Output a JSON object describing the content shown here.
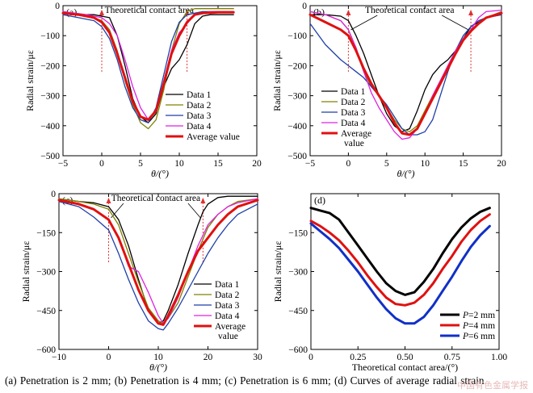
{
  "caption": "(a)  Penetration  is  2  mm;  (b)  Penetration  is  4  mm; (c) Penetration is 6 mm; (d) Curves of average radial strain",
  "watermark": "中国有色金属学报",
  "chart_data": [
    {
      "type": "line",
      "panel_label": "(a)",
      "xlabel": "θ/(°)",
      "ylabel": "Radial strain/με",
      "xlim": [
        -5,
        20
      ],
      "ylim": [
        -500,
        0
      ],
      "xticks": [
        -5,
        0,
        5,
        10,
        15,
        20
      ],
      "yticks": [
        0,
        -100,
        -200,
        -300,
        -400,
        -500
      ],
      "grid": false,
      "legend_position": "lower-right",
      "annotation": {
        "text": "Theoretical contact area",
        "arrows_at_x": [
          0,
          11
        ]
      },
      "series": [
        {
          "name": "Data 1",
          "color": "#000000",
          "width": 1.3,
          "x": [
            -5,
            -3,
            -1,
            1,
            2,
            3,
            4,
            5,
            6,
            7,
            8,
            9,
            10,
            11,
            12,
            13,
            14,
            15,
            17
          ],
          "y": [
            -20,
            -30,
            -30,
            -40,
            -100,
            -200,
            -310,
            -370,
            -390,
            -360,
            -270,
            -210,
            -180,
            -130,
            -60,
            -35,
            -30,
            -30,
            -30
          ]
        },
        {
          "name": "Data 2",
          "color": "#808000",
          "width": 1.3,
          "x": [
            -5,
            -2,
            0,
            1,
            2,
            3,
            4,
            5,
            6,
            7,
            8,
            9,
            10,
            11,
            12,
            13,
            15,
            17
          ],
          "y": [
            -20,
            -30,
            -50,
            -80,
            -150,
            -250,
            -330,
            -390,
            -410,
            -380,
            -280,
            -150,
            -60,
            -20,
            -10,
            -10,
            -10,
            -10
          ]
        },
        {
          "name": "Data 3",
          "color": "#1f3fa8",
          "width": 1.3,
          "x": [
            -5,
            -3,
            -1,
            0,
            1,
            2,
            3,
            4,
            5,
            6,
            7,
            8,
            9,
            10,
            11,
            12,
            13,
            15,
            17
          ],
          "y": [
            -30,
            -40,
            -50,
            -70,
            -110,
            -180,
            -270,
            -340,
            -380,
            -390,
            -340,
            -230,
            -120,
            -55,
            -30,
            -25,
            -20,
            -20,
            -20
          ]
        },
        {
          "name": "Data 4",
          "color": "#e020e0",
          "width": 1.3,
          "x": [
            -5,
            -2,
            0,
            1,
            2,
            3,
            4,
            5,
            6,
            7,
            8,
            9,
            10,
            11,
            12,
            14,
            17
          ],
          "y": [
            -20,
            -30,
            -40,
            -60,
            -100,
            -180,
            -270,
            -340,
            -380,
            -350,
            -250,
            -150,
            -90,
            -60,
            -30,
            -20,
            -20
          ]
        },
        {
          "name": "Average value",
          "color": "#e01010",
          "width": 3.0,
          "x": [
            -5,
            -3,
            -1,
            0,
            1,
            2,
            3,
            4,
            5,
            6,
            7,
            8,
            9,
            10,
            11,
            12,
            13,
            15,
            17
          ],
          "y": [
            -25,
            -30,
            -40,
            -55,
            -90,
            -160,
            -240,
            -320,
            -370,
            -380,
            -350,
            -260,
            -160,
            -100,
            -55,
            -30,
            -25,
            -22,
            -22
          ]
        }
      ]
    },
    {
      "type": "line",
      "panel_label": "(b)",
      "xlabel": "θ/(°)",
      "ylabel": "Radial strain/με",
      "xlim": [
        -5,
        20
      ],
      "ylim": [
        -500,
        0
      ],
      "xticks": [
        -5,
        0,
        5,
        10,
        15,
        20
      ],
      "yticks": [
        0,
        -100,
        -200,
        -300,
        -400,
        -500
      ],
      "grid": false,
      "legend_position": "lower-left",
      "annotation": {
        "text": "Theoretical contact area",
        "arrows_at_x": [
          0,
          16
        ]
      },
      "series": [
        {
          "name": "Data 1",
          "color": "#000000",
          "width": 1.3,
          "x": [
            -5,
            -3,
            -1,
            0,
            1,
            2,
            3,
            4,
            5,
            6,
            7,
            8,
            9,
            10,
            11,
            12,
            13,
            14,
            15,
            16,
            18,
            20
          ],
          "y": [
            -30,
            -30,
            -35,
            -50,
            -100,
            -160,
            -230,
            -300,
            -360,
            -400,
            -420,
            -410,
            -350,
            -280,
            -230,
            -200,
            -180,
            -150,
            -110,
            -70,
            -40,
            -30
          ]
        },
        {
          "name": "Data 2",
          "color": "#808000",
          "width": 1.3,
          "x": [
            -5,
            -3,
            -1,
            0,
            1,
            2,
            3,
            4,
            5,
            6,
            7,
            8,
            9,
            10,
            11,
            12,
            13,
            14,
            15,
            16,
            17,
            18,
            20
          ],
          "y": [
            -20,
            -30,
            -50,
            -80,
            -150,
            -220,
            -270,
            -300,
            -340,
            -380,
            -410,
            -420,
            -400,
            -350,
            -300,
            -250,
            -200,
            -150,
            -110,
            -80,
            -60,
            -40,
            -20
          ]
        },
        {
          "name": "Data 3",
          "color": "#1f3fa8",
          "width": 1.3,
          "x": [
            -5,
            -3,
            -1,
            0,
            1,
            2,
            3,
            4,
            5,
            6,
            7,
            8,
            9,
            10,
            11,
            12,
            13,
            14,
            15,
            16,
            17,
            18,
            20
          ],
          "y": [
            -60,
            -130,
            -180,
            -200,
            -220,
            -240,
            -270,
            -300,
            -330,
            -370,
            -410,
            -430,
            -430,
            -420,
            -380,
            -300,
            -220,
            -150,
            -100,
            -70,
            -50,
            -40,
            -30
          ]
        },
        {
          "name": "Data 4",
          "color": "#e020e0",
          "width": 1.3,
          "x": [
            -5,
            -3,
            -1,
            0,
            1,
            2,
            3,
            4,
            5,
            6,
            7,
            8,
            9,
            10,
            11,
            12,
            13,
            14,
            15,
            16,
            17,
            18,
            20
          ],
          "y": [
            -20,
            -30,
            -50,
            -80,
            -140,
            -220,
            -290,
            -340,
            -380,
            -420,
            -445,
            -440,
            -410,
            -360,
            -300,
            -250,
            -200,
            -150,
            -110,
            -80,
            -40,
            -20,
            -15
          ]
        },
        {
          "name": "Average value",
          "color": "#e01010",
          "width": 3.0,
          "x": [
            -5,
            -3,
            -1,
            0,
            1,
            2,
            3,
            4,
            5,
            6,
            7,
            8,
            9,
            10,
            11,
            12,
            13,
            14,
            15,
            16,
            17,
            18,
            20
          ],
          "y": [
            -30,
            -55,
            -80,
            -100,
            -150,
            -210,
            -260,
            -300,
            -340,
            -390,
            -425,
            -430,
            -410,
            -360,
            -310,
            -260,
            -210,
            -160,
            -115,
            -85,
            -60,
            -40,
            -25
          ]
        }
      ]
    },
    {
      "type": "line",
      "panel_label": "(c)",
      "xlabel": "θ/(°)",
      "ylabel": "Radial strain/με",
      "xlim": [
        -10,
        30
      ],
      "ylim": [
        -600,
        0
      ],
      "xticks": [
        -10,
        0,
        10,
        20,
        30
      ],
      "yticks": [
        0,
        -150,
        -300,
        -450,
        -600
      ],
      "grid": false,
      "legend_position": "lower-right",
      "annotation": {
        "text": "Theoretical contact area",
        "arrows_at_x": [
          0,
          19
        ]
      },
      "series": [
        {
          "name": "Data 1",
          "color": "#000000",
          "width": 1.3,
          "x": [
            -10,
            -6,
            -3,
            0,
            2,
            4,
            6,
            8,
            10,
            11,
            12,
            14,
            16,
            18,
            19,
            20,
            22,
            24,
            26,
            30
          ],
          "y": [
            -20,
            -30,
            -35,
            -50,
            -100,
            -200,
            -330,
            -450,
            -500,
            -490,
            -450,
            -350,
            -230,
            -120,
            -70,
            -40,
            -15,
            -10,
            -10,
            -10
          ]
        },
        {
          "name": "Data 2",
          "color": "#808000",
          "width": 1.3,
          "x": [
            -10,
            -6,
            -3,
            0,
            2,
            4,
            6,
            8,
            10,
            11,
            12,
            14,
            16,
            18,
            20,
            22,
            24,
            26,
            30
          ],
          "y": [
            -20,
            -30,
            -40,
            -60,
            -120,
            -230,
            -340,
            -440,
            -490,
            -500,
            -480,
            -420,
            -320,
            -220,
            -130,
            -80,
            -50,
            -30,
            -20
          ]
        },
        {
          "name": "Data 3",
          "color": "#1f3fa8",
          "width": 1.3,
          "x": [
            -10,
            -6,
            -3,
            0,
            2,
            4,
            6,
            8,
            10,
            11,
            12,
            14,
            16,
            18,
            20,
            22,
            24,
            26,
            30
          ],
          "y": [
            -30,
            -50,
            -90,
            -140,
            -230,
            -330,
            -420,
            -490,
            -520,
            -525,
            -500,
            -440,
            -370,
            -300,
            -230,
            -170,
            -120,
            -80,
            -40
          ]
        },
        {
          "name": "Data 4",
          "color": "#e020e0",
          "width": 1.3,
          "x": [
            -10,
            -6,
            -3,
            0,
            2,
            4,
            6,
            8,
            10,
            11,
            12,
            14,
            16,
            18,
            20,
            22,
            24,
            26,
            30
          ],
          "y": [
            -25,
            -40,
            -60,
            -100,
            -170,
            -280,
            -300,
            -380,
            -470,
            -500,
            -480,
            -400,
            -300,
            -200,
            -120,
            -80,
            -50,
            -35,
            -20
          ]
        },
        {
          "name": "Average value",
          "color": "#e01010",
          "width": 3.0,
          "x": [
            -10,
            -6,
            -3,
            0,
            2,
            4,
            6,
            8,
            10,
            11,
            12,
            14,
            16,
            18,
            20,
            22,
            24,
            26,
            30
          ],
          "y": [
            -25,
            -40,
            -60,
            -100,
            -170,
            -270,
            -370,
            -450,
            -500,
            -505,
            -470,
            -390,
            -300,
            -220,
            -170,
            -120,
            -80,
            -50,
            -25
          ]
        }
      ]
    },
    {
      "type": "line",
      "panel_label": "(d)",
      "xlabel": "Theoretical contact area/(°)",
      "ylabel": "Radial strain/με",
      "xlim": [
        0,
        1
      ],
      "ylim": [
        -600,
        0
      ],
      "xticks": [
        0,
        0.25,
        0.5,
        0.75,
        1.0
      ],
      "xticklabels": [
        "0",
        "0.25",
        "0.50",
        "0.75",
        "1.00"
      ],
      "yticks": [
        -150,
        -300,
        -450,
        -600
      ],
      "grid": false,
      "legend_position": "lower-right",
      "series": [
        {
          "name": "P=2 mm",
          "color": "#000000",
          "width": 3.0,
          "x": [
            0,
            0.05,
            0.1,
            0.15,
            0.2,
            0.25,
            0.3,
            0.35,
            0.4,
            0.45,
            0.5,
            0.55,
            0.6,
            0.65,
            0.7,
            0.75,
            0.8,
            0.85,
            0.9,
            0.95
          ],
          "y": [
            -55,
            -65,
            -75,
            -100,
            -150,
            -200,
            -250,
            -300,
            -345,
            -375,
            -390,
            -380,
            -340,
            -290,
            -230,
            -175,
            -130,
            -95,
            -70,
            -55
          ]
        },
        {
          "name": "P=4 mm",
          "color": "#e01010",
          "width": 3.0,
          "x": [
            0,
            0.05,
            0.1,
            0.15,
            0.2,
            0.25,
            0.3,
            0.35,
            0.4,
            0.45,
            0.5,
            0.55,
            0.6,
            0.65,
            0.7,
            0.75,
            0.8,
            0.85,
            0.9,
            0.95
          ],
          "y": [
            -105,
            -125,
            -150,
            -180,
            -220,
            -265,
            -315,
            -360,
            -400,
            -425,
            -430,
            -420,
            -390,
            -345,
            -290,
            -240,
            -185,
            -140,
            -105,
            -80
          ]
        },
        {
          "name": "P=6 mm",
          "color": "#1030c8",
          "width": 3.0,
          "x": [
            0,
            0.05,
            0.1,
            0.15,
            0.2,
            0.25,
            0.3,
            0.35,
            0.4,
            0.45,
            0.5,
            0.55,
            0.6,
            0.65,
            0.7,
            0.75,
            0.8,
            0.85,
            0.9,
            0.95
          ],
          "y": [
            -115,
            -145,
            -175,
            -210,
            -255,
            -300,
            -350,
            -400,
            -445,
            -480,
            -500,
            -500,
            -475,
            -430,
            -375,
            -320,
            -260,
            -205,
            -160,
            -125
          ]
        }
      ]
    }
  ]
}
